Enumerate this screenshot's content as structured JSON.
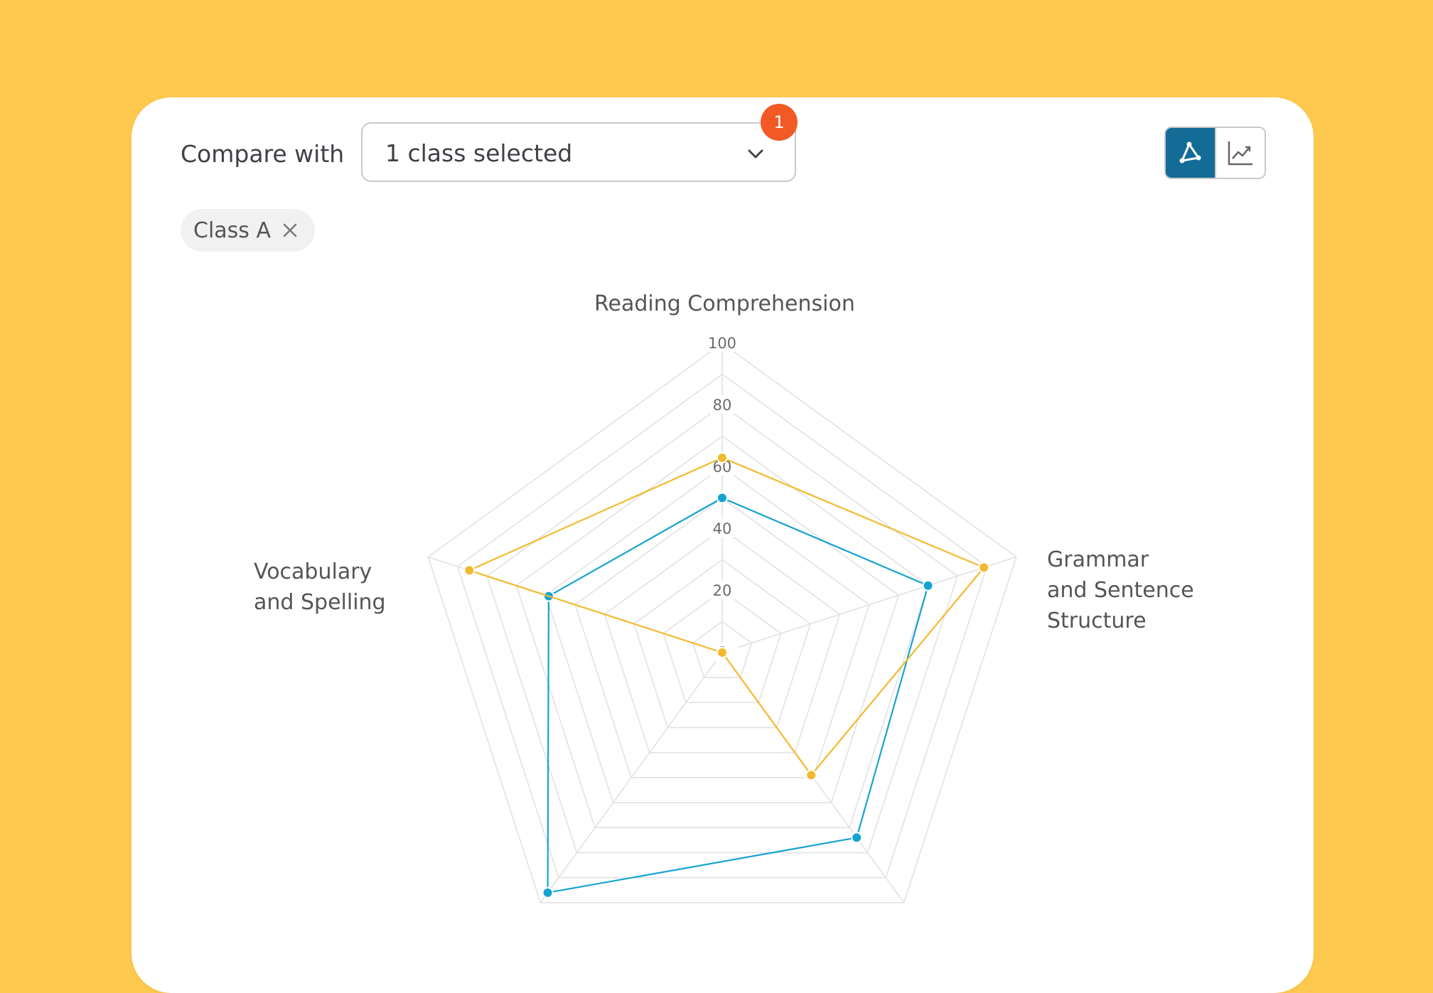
{
  "compare": {
    "label": "Compare with",
    "select_value": "1 class selected",
    "badge_count": "1"
  },
  "chips": [
    {
      "label": "Class A"
    }
  ],
  "view_toggle": {
    "options": [
      {
        "icon": "radar-chart-icon",
        "active": true
      },
      {
        "icon": "line-chart-icon",
        "active": false
      }
    ]
  },
  "colors": {
    "background": "#FDC94E",
    "accent": "#126C96",
    "badge": "#F15A24",
    "series_blue": "#15A3D2",
    "series_yellow": "#F2BB2F"
  },
  "chart_data": {
    "type": "radar",
    "axes": [
      "Reading Comprehension",
      "Grammar\nand Sentence\nStructure",
      "",
      "",
      "Vocabulary\nand Spelling"
    ],
    "range": [
      0,
      100
    ],
    "ticks": [
      "0",
      "20",
      "40",
      "60",
      "80",
      "100"
    ],
    "ring_count": 10,
    "series": [
      {
        "color": "#15A3D2",
        "values": [
          50,
          70,
          74,
          96,
          59
        ]
      },
      {
        "color": "#F2BB2F",
        "values": [
          63,
          89,
          49,
          0,
          86
        ]
      }
    ]
  }
}
